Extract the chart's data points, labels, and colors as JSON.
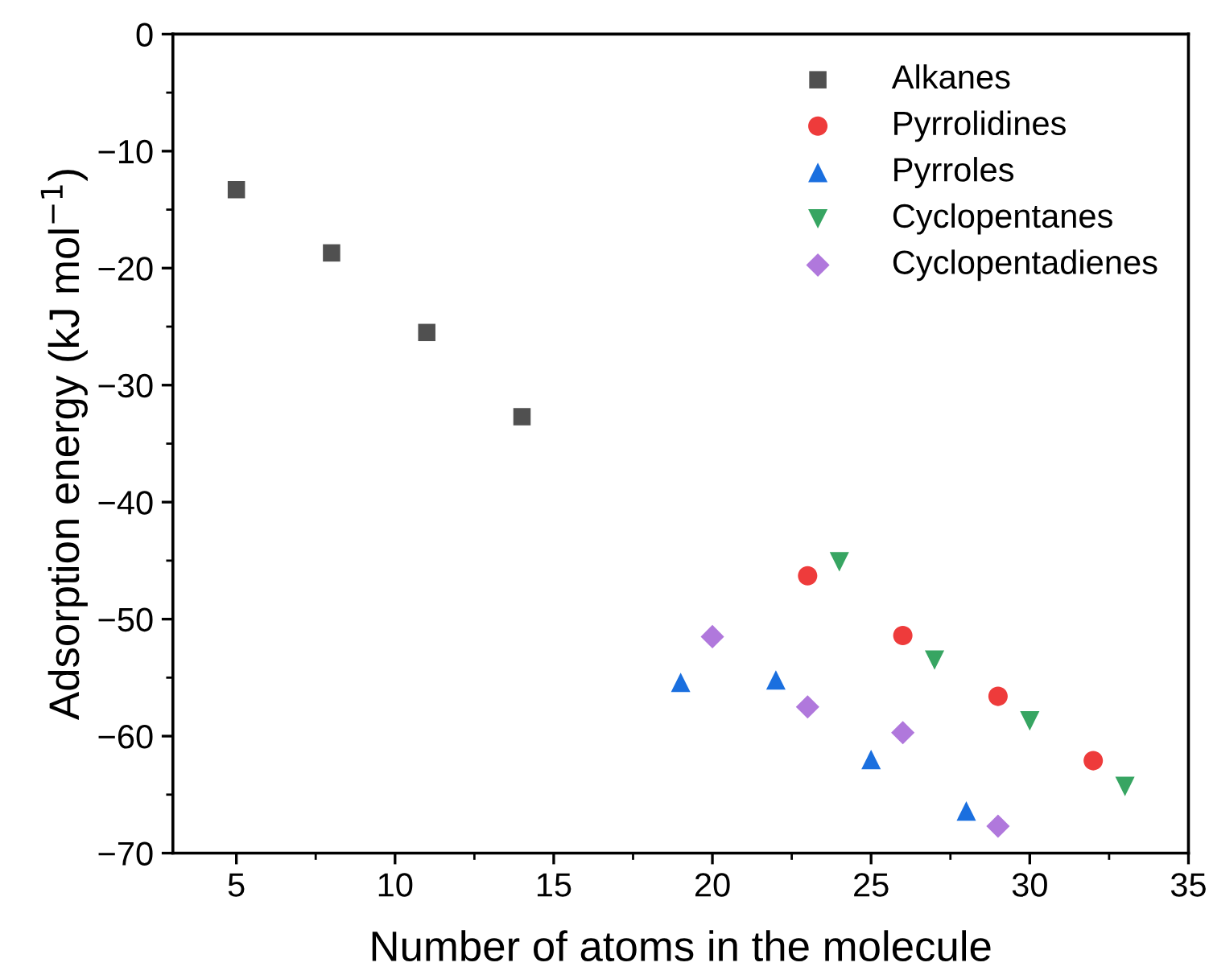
{
  "chart_data": {
    "type": "scatter",
    "xlabel": "Number of atoms in the molecule",
    "ylabel": "Adsorption energy (kJ mol$^{−1}$)",
    "xlim": [
      3,
      35
    ],
    "xticks": [
      5,
      10,
      15,
      20,
      25,
      30,
      35
    ],
    "ylim": [
      -70,
      0
    ],
    "yticks": [
      -70,
      -60,
      -50,
      -40,
      -30,
      -20,
      -10,
      0
    ],
    "grid": false,
    "legend": "top right",
    "series": [
      {
        "name": "Alkanes",
        "color": "#505050",
        "marker": "square",
        "x": [
          5,
          8,
          11,
          14
        ],
        "values": [
          -13.3,
          -18.7,
          -25.5,
          -32.7
        ]
      },
      {
        "name": "Pyrrolidines",
        "color": "#ee3b3b",
        "marker": "circle",
        "x": [
          23,
          26,
          29,
          32
        ],
        "values": [
          -46.3,
          -51.4,
          -56.6,
          -62.1
        ]
      },
      {
        "name": "Pyrroles",
        "color": "#1a6fdf",
        "marker": "triangle",
        "x": [
          19,
          22,
          25,
          28
        ],
        "values": [
          -55.4,
          -55.2,
          -62.0,
          -66.4
        ]
      },
      {
        "name": "Cyclopentanes",
        "color": "#37a562",
        "marker": "triangle_down",
        "x": [
          24,
          27,
          30,
          33
        ],
        "values": [
          -45.1,
          -53.5,
          -58.7,
          -64.3
        ]
      },
      {
        "name": "Cyclopentadienes",
        "color": "#b078dc",
        "marker": "diamond",
        "x": [
          20,
          23,
          26,
          29
        ],
        "values": [
          -51.5,
          -57.5,
          -59.7,
          -67.7
        ]
      }
    ]
  }
}
